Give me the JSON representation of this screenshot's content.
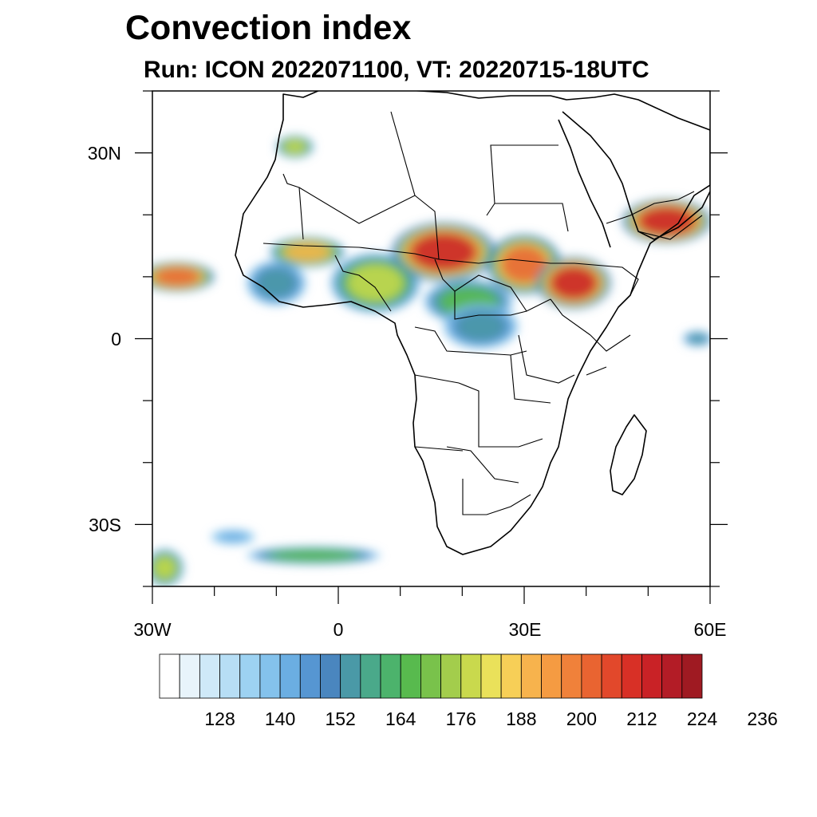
{
  "title": "Convection index",
  "subtitle": "Run: ICON 2022071100,  VT: 20220715-18UTC",
  "axes": {
    "y_ticks": [
      "30N",
      "0",
      "30S"
    ],
    "x_ticks": [
      "30W",
      "0",
      "30E",
      "60E"
    ]
  },
  "map": {
    "projection": "cylindrical-equidistant",
    "lon_range": [
      -30,
      60
    ],
    "lat_range": [
      -40,
      40
    ],
    "coastlines": true,
    "country_borders": true
  },
  "colorbar": {
    "labels": [
      "128",
      "140",
      "152",
      "164",
      "176",
      "188",
      "200",
      "212",
      "224",
      "236"
    ],
    "colors": [
      "#ffffff",
      "#e8f4fb",
      "#cfe9f8",
      "#b7def5",
      "#9dd2f2",
      "#84c2ec",
      "#6baee2",
      "#5696d2",
      "#4a86bf",
      "#4a99a7",
      "#4aa98a",
      "#4cb36c",
      "#58ba4e",
      "#79c24b",
      "#a3cd4c",
      "#c9d94d",
      "#eae15a",
      "#f7cf57",
      "#f7b34d",
      "#f59b42",
      "#f0813a",
      "#e96431",
      "#e2482b",
      "#d83026",
      "#c92226",
      "#b31c26",
      "#9f1a22",
      "#8a161e"
    ]
  },
  "chart_data": {
    "type": "heatmap",
    "title": "Convection index",
    "subtitle": "Run: ICON 2022071100,  VT: 20220715-18UTC",
    "variable": "Convection index",
    "x_range": [
      -30,
      60
    ],
    "y_range": [
      -40,
      40
    ],
    "levels_labeled": [
      128,
      140,
      152,
      164,
      176,
      188,
      200,
      212,
      224,
      236
    ],
    "regions": [
      {
        "name": "tropical-atlantic-band",
        "lon": -26,
        "lat": 10,
        "rx": 5,
        "ry": 2,
        "level": 200
      },
      {
        "name": "guinea-coast",
        "lon": -10,
        "lat": 9,
        "rx": 4,
        "ry": 3,
        "level": 152
      },
      {
        "name": "west-sahel",
        "lon": -5,
        "lat": 14,
        "rx": 5,
        "ry": 2,
        "level": 188
      },
      {
        "name": "nigeria",
        "lon": 6,
        "lat": 9,
        "rx": 6,
        "ry": 4,
        "level": 176
      },
      {
        "name": "chad-core",
        "lon": 17,
        "lat": 14,
        "rx": 7,
        "ry": 4,
        "level": 212
      },
      {
        "name": "central-african-rep",
        "lon": 21,
        "lat": 6,
        "rx": 6,
        "ry": 3,
        "level": 164
      },
      {
        "name": "congo-basin",
        "lon": 23,
        "lat": 2,
        "rx": 5,
        "ry": 3,
        "level": 152
      },
      {
        "name": "south-sudan",
        "lon": 30,
        "lat": 12,
        "rx": 5,
        "ry": 4,
        "level": 200
      },
      {
        "name": "ethiopian-highlands",
        "lon": 38,
        "lat": 9,
        "rx": 5,
        "ry": 3.5,
        "level": 212
      },
      {
        "name": "arabian-peninsula",
        "lon": 53,
        "lat": 19,
        "rx": 6,
        "ry": 3,
        "level": 212
      },
      {
        "name": "morocco",
        "lon": -7,
        "lat": 31,
        "rx": 2.5,
        "ry": 1.5,
        "level": 176
      },
      {
        "name": "south-atlantic-front",
        "lon": -4,
        "lat": -35,
        "rx": 9,
        "ry": 1.2,
        "level": 164
      },
      {
        "name": "southwest-corner",
        "lon": -28,
        "lat": -37,
        "rx": 2.5,
        "ry": 2.5,
        "level": 176
      },
      {
        "name": "mid-atlantic-streak",
        "lon": -17,
        "lat": -32,
        "rx": 3,
        "ry": 1,
        "level": 140
      },
      {
        "name": "indian-ocean-east",
        "lon": 58,
        "lat": 0,
        "rx": 2,
        "ry": 1,
        "level": 152
      }
    ]
  }
}
